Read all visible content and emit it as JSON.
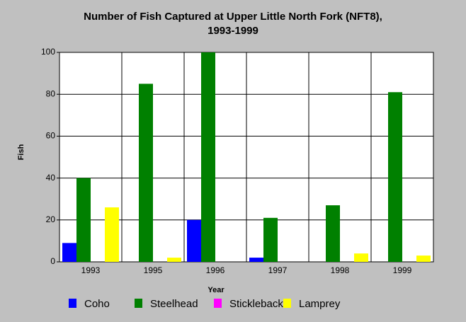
{
  "chart_data": {
    "type": "bar",
    "title": [
      "Number of Fish Captured at Upper Little North Fork (NFT8),",
      "1993-1999"
    ],
    "x_label": "Year",
    "y_label": "Fish",
    "categories": [
      "1993",
      "1995",
      "1996",
      "1997",
      "1998",
      "1999"
    ],
    "series": [
      {
        "name": "Coho",
        "color": "#0000ff",
        "values": [
          9,
          0,
          20,
          2,
          0,
          0
        ]
      },
      {
        "name": "Steelhead",
        "color": "#008000",
        "values": [
          40,
          85,
          100,
          21,
          27,
          81
        ]
      },
      {
        "name": "Stickleback",
        "color": "#ff00ff",
        "values": [
          0,
          0,
          0,
          0,
          0,
          0
        ]
      },
      {
        "name": "Lamprey",
        "color": "#ffff00",
        "values": [
          26,
          2,
          0,
          0,
          4,
          3
        ]
      }
    ],
    "ylim": [
      0,
      100
    ],
    "yticks": [
      0,
      20,
      40,
      60,
      80,
      100
    ],
    "grid": true
  }
}
